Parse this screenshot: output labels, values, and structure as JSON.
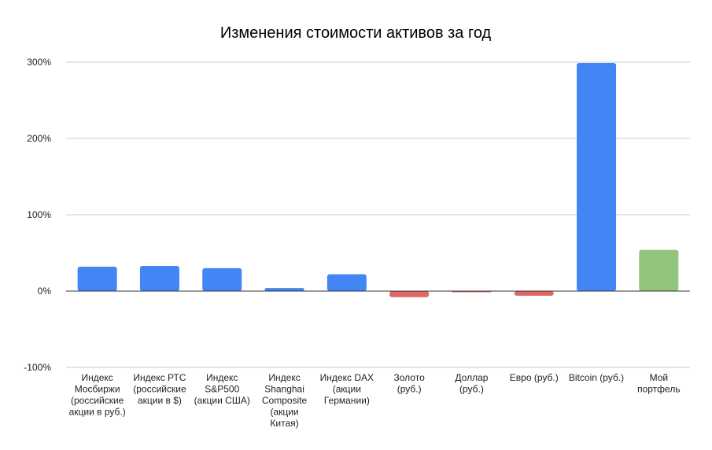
{
  "chart_data": {
    "type": "bar",
    "title": "Изменения стоимости активов за год",
    "xlabel": "",
    "ylabel": "",
    "ylim": [
      -100,
      300
    ],
    "y_ticks": [
      -100,
      0,
      100,
      200,
      300
    ],
    "y_tick_labels": [
      "-100%",
      "0%",
      "100%",
      "200%",
      "300%"
    ],
    "grid": true,
    "legend": "none",
    "categories": [
      "Индекс Мосбиржи (российские акции в руб.)",
      "Индекс РТС (российские акции в $)",
      "Индекс S&P500 (акции США)",
      "Индекс Shanghai Composite (акции Китая)",
      "Индекс DAX (акции Германии)",
      "Золото (руб.)",
      "Доллар (руб.)",
      "Евро (руб.)",
      "Bitcoin (руб.)",
      "Мой портфель"
    ],
    "category_label_lines": [
      [
        "Индекс",
        "Мосбиржи",
        "(российские",
        "акции в руб.)"
      ],
      [
        "Индекс РТС",
        "(российские",
        "акции в $)"
      ],
      [
        "Индекс",
        "S&P500",
        "(акции США)"
      ],
      [
        "Индекс",
        "Shanghai",
        "Composite",
        "(акции",
        "Китая)"
      ],
      [
        "Индекс DAX",
        "(акции",
        "Германии)"
      ],
      [
        "Золото",
        "(руб.)"
      ],
      [
        "Доллар",
        "(руб.)"
      ],
      [
        "Евро (руб.)"
      ],
      [
        "Bitcoin (руб.)"
      ],
      [
        "Мой",
        "портфель"
      ]
    ],
    "values": [
      32,
      33,
      30,
      4,
      22,
      -8,
      -1,
      -6,
      299,
      54
    ],
    "bar_colors": [
      "#4285f4",
      "#4285f4",
      "#4285f4",
      "#4285f4",
      "#4285f4",
      "#e06666",
      "#e06666",
      "#e06666",
      "#4285f4",
      "#93c47d"
    ]
  }
}
